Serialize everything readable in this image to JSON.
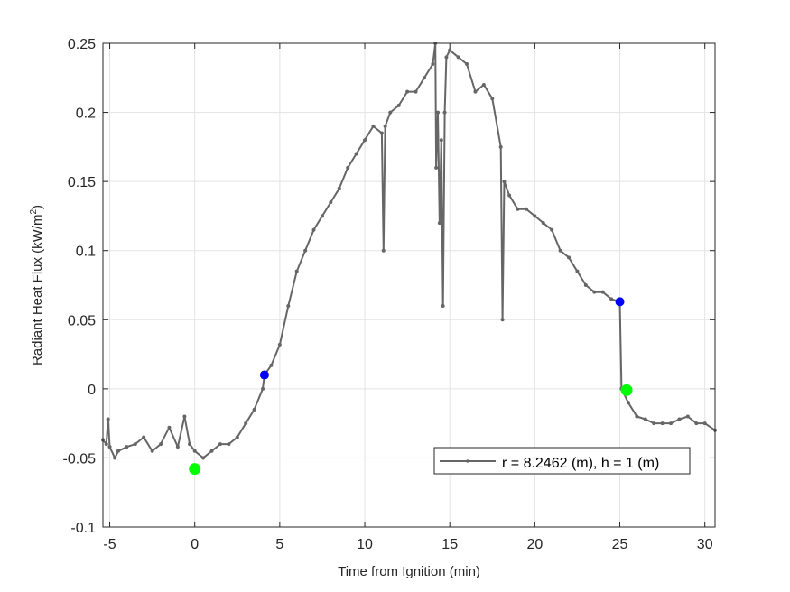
{
  "chart_data": {
    "type": "line",
    "title": "",
    "xlabel": "Time from Ignition (min)",
    "ylabel": "Radiant Heat Flux (kW/m",
    "ylabel_sup": "2",
    "ylabel_end": ")",
    "xlim": [
      -5.4,
      30.6
    ],
    "ylim": [
      -0.1,
      0.25
    ],
    "grid": true,
    "legend_placement": "bottom-right",
    "xticks": [
      -5,
      0,
      5,
      10,
      15,
      20,
      25,
      30
    ],
    "xtick_labels": [
      "-5",
      "0",
      "5",
      "10",
      "15",
      "20",
      "25",
      "30"
    ],
    "yticks": [
      -0.1,
      -0.05,
      0,
      0.05,
      0.1,
      0.15,
      0.2,
      0.25
    ],
    "ytick_labels": [
      "-0.1",
      "-0.05",
      "0",
      "0.05",
      "0.1",
      "0.15",
      "0.2",
      "0.25"
    ],
    "series": [
      {
        "name": "r = 8.2462 (m), h = 1 (m)",
        "color": "#666666",
        "x": [
          -5.4,
          -5.2,
          -5.1,
          -5,
          -4.7,
          -4.5,
          -4,
          -3.5,
          -3,
          -2.5,
          -2,
          -1.5,
          -1,
          -0.6,
          -0.3,
          0,
          0.5,
          1,
          1.5,
          2,
          2.5,
          3,
          3.5,
          4,
          4.1,
          4.5,
          5,
          5.5,
          6,
          6.5,
          7,
          7.5,
          8,
          8.5,
          9,
          9.5,
          10,
          10.5,
          11,
          11.1,
          11.2,
          11.5,
          12,
          12.5,
          13,
          13.5,
          14,
          14.15,
          14.2,
          14.3,
          14.4,
          14.5,
          14.6,
          14.7,
          14.8,
          15,
          15.5,
          16,
          16.5,
          17,
          17.5,
          18,
          18.1,
          18.2,
          18.5,
          19,
          19.5,
          20,
          20.5,
          21,
          21.5,
          22,
          22.5,
          23,
          23.5,
          24,
          24.5,
          25,
          25.1,
          25.5,
          26,
          26.5,
          27,
          27.5,
          28,
          28.5,
          29,
          29.5,
          30,
          30.6
        ],
        "y": [
          -0.037,
          -0.04,
          -0.022,
          -0.042,
          -0.05,
          -0.045,
          -0.042,
          -0.04,
          -0.035,
          -0.045,
          -0.04,
          -0.028,
          -0.042,
          -0.02,
          -0.04,
          -0.045,
          -0.05,
          -0.045,
          -0.04,
          -0.04,
          -0.035,
          -0.025,
          -0.015,
          0.0,
          0.01,
          0.017,
          0.032,
          0.06,
          0.085,
          0.1,
          0.115,
          0.125,
          0.135,
          0.145,
          0.16,
          0.17,
          0.18,
          0.19,
          0.185,
          0.1,
          0.19,
          0.2,
          0.205,
          0.215,
          0.215,
          0.225,
          0.235,
          0.25,
          0.16,
          0.2,
          0.12,
          0.18,
          0.06,
          0.2,
          0.24,
          0.245,
          0.24,
          0.235,
          0.215,
          0.22,
          0.21,
          0.175,
          0.05,
          0.15,
          0.14,
          0.13,
          0.13,
          0.125,
          0.12,
          0.115,
          0.1,
          0.095,
          0.085,
          0.075,
          0.07,
          0.07,
          0.065,
          0.063,
          0.0,
          -0.01,
          -0.02,
          -0.022,
          -0.025,
          -0.025,
          -0.025,
          -0.022,
          -0.02,
          -0.025,
          -0.025,
          -0.03
        ]
      }
    ],
    "markers": [
      {
        "x": 0,
        "y": -0.058,
        "color": "#00ff00"
      },
      {
        "x": 4.1,
        "y": 0.01,
        "color": "#0000ff"
      },
      {
        "x": 25.0,
        "y": 0.063,
        "color": "#0000ff"
      },
      {
        "x": 25.4,
        "y": -0.001,
        "color": "#00ff00"
      }
    ]
  }
}
